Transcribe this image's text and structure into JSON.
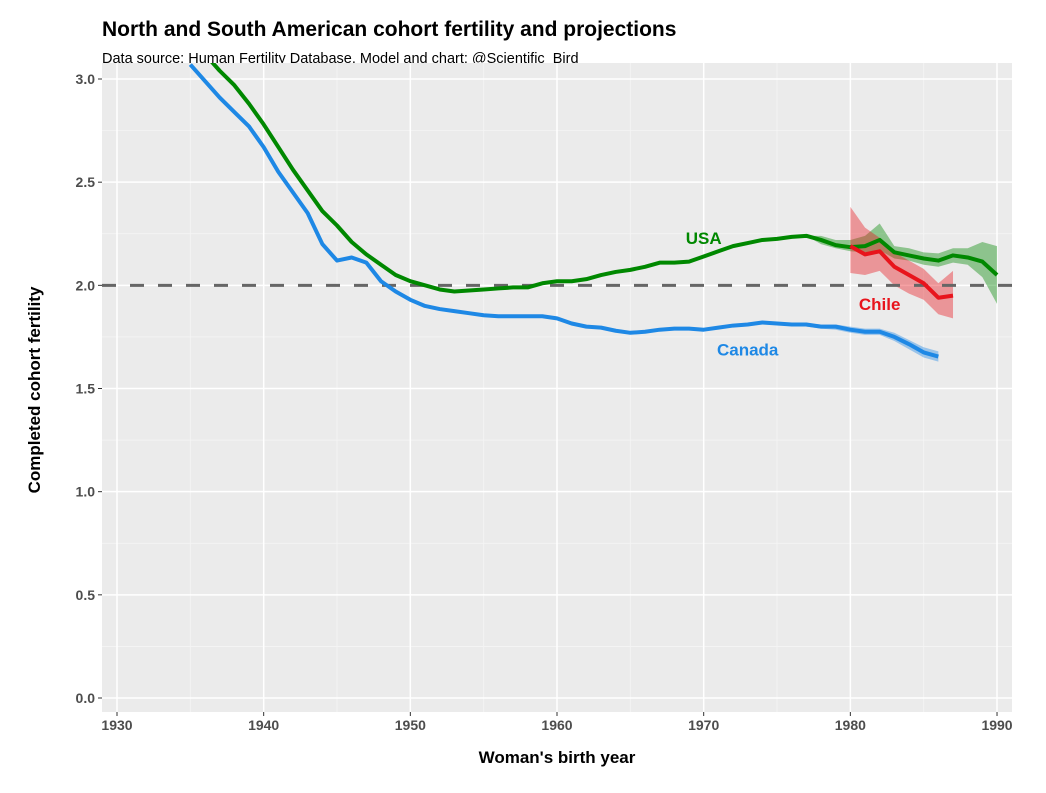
{
  "chart_data": {
    "type": "line",
    "title": "North and South American cohort fertility and projections",
    "subtitle": "Data source: Human Fertility Database.  Model and chart: @Scientific_Bird",
    "xlabel": "Woman's birth year",
    "ylabel": "Completed cohort fertility",
    "xlim": [
      1929.2,
      1990.9
    ],
    "ylim": [
      0,
      3.0
    ],
    "xticks": [
      1930,
      1940,
      1950,
      1960,
      1970,
      1980,
      1990
    ],
    "yticks": [
      0.0,
      0.5,
      1.0,
      1.5,
      2.0,
      2.5,
      3.0
    ],
    "ytick_labels": [
      "0.0",
      "0.5",
      "1.0",
      "1.5",
      "2.0",
      "2.5",
      "3.0"
    ],
    "grid": true,
    "reference_line": {
      "y": 2.0,
      "style": "dashed",
      "color": "#666666"
    },
    "series": [
      {
        "name": "USA",
        "color": "#008800",
        "label_pos": [
          1970,
          2.23
        ],
        "x": [
          1936,
          1937,
          1938,
          1939,
          1940,
          1941,
          1942,
          1943,
          1944,
          1945,
          1946,
          1947,
          1948,
          1949,
          1950,
          1951,
          1952,
          1953,
          1954,
          1955,
          1956,
          1957,
          1958,
          1959,
          1960,
          1961,
          1962,
          1963,
          1964,
          1965,
          1966,
          1967,
          1968,
          1969,
          1970,
          1971,
          1972,
          1973,
          1974,
          1975,
          1976,
          1977,
          1978,
          1979,
          1980,
          1981,
          1982,
          1983,
          1984,
          1985,
          1986,
          1987,
          1988,
          1989,
          1990
        ],
        "y": [
          3.12,
          3.04,
          2.97,
          2.88,
          2.78,
          2.67,
          2.56,
          2.46,
          2.36,
          2.29,
          2.21,
          2.15,
          2.1,
          2.05,
          2.02,
          2.0,
          1.98,
          1.97,
          1.975,
          1.98,
          1.985,
          1.99,
          1.99,
          2.01,
          2.02,
          2.02,
          2.03,
          2.05,
          2.065,
          2.075,
          2.09,
          2.11,
          2.11,
          2.115,
          2.14,
          2.165,
          2.19,
          2.205,
          2.22,
          2.225,
          2.235,
          2.24,
          2.22,
          2.195,
          2.185,
          2.19,
          2.22,
          2.16,
          2.145,
          2.13,
          2.12,
          2.145,
          2.135,
          2.115,
          2.05
        ],
        "band": {
          "x": [
            1977,
            1978,
            1979,
            1980,
            1981,
            1982,
            1983,
            1984,
            1985,
            1986,
            1987,
            1988,
            1989,
            1990
          ],
          "lower": [
            2.24,
            2.2,
            2.18,
            2.165,
            2.16,
            2.17,
            2.13,
            2.12,
            2.1,
            2.09,
            2.11,
            2.1,
            2.04,
            1.91
          ],
          "upper": [
            2.24,
            2.24,
            2.22,
            2.22,
            2.24,
            2.3,
            2.19,
            2.18,
            2.16,
            2.155,
            2.18,
            2.18,
            2.21,
            2.19
          ]
        }
      },
      {
        "name": "Chile",
        "color": "#e8141c",
        "label_pos": [
          1982,
          1.91
        ],
        "x": [
          1980,
          1981,
          1982,
          1983,
          1984,
          1985,
          1986,
          1987
        ],
        "y": [
          2.19,
          2.15,
          2.165,
          2.09,
          2.05,
          2.01,
          1.94,
          1.95
        ],
        "band": {
          "x": [
            1980,
            1981,
            1982,
            1983,
            1984,
            1985,
            1986,
            1987
          ],
          "lower": [
            2.06,
            2.05,
            2.07,
            2.0,
            1.96,
            1.93,
            1.86,
            1.84
          ],
          "upper": [
            2.38,
            2.28,
            2.23,
            2.16,
            2.12,
            2.08,
            2.01,
            2.07
          ]
        }
      },
      {
        "name": "Canada",
        "color": "#1e88e5",
        "label_pos": [
          1973,
          1.69
        ],
        "x": [
          1935,
          1936,
          1937,
          1938,
          1939,
          1940,
          1941,
          1942,
          1943,
          1944,
          1945,
          1946,
          1947,
          1948,
          1949,
          1950,
          1951,
          1952,
          1953,
          1954,
          1955,
          1956,
          1957,
          1958,
          1959,
          1960,
          1961,
          1962,
          1963,
          1964,
          1965,
          1966,
          1967,
          1968,
          1969,
          1970,
          1971,
          1972,
          1973,
          1974,
          1975,
          1976,
          1977,
          1978,
          1979,
          1980,
          1981,
          1982,
          1983,
          1984,
          1985,
          1986
        ],
        "y": [
          3.07,
          2.99,
          2.91,
          2.84,
          2.77,
          2.67,
          2.55,
          2.45,
          2.35,
          2.2,
          2.12,
          2.135,
          2.11,
          2.02,
          1.97,
          1.93,
          1.9,
          1.885,
          1.875,
          1.865,
          1.855,
          1.85,
          1.85,
          1.85,
          1.85,
          1.84,
          1.815,
          1.8,
          1.795,
          1.78,
          1.77,
          1.775,
          1.785,
          1.79,
          1.79,
          1.785,
          1.795,
          1.805,
          1.81,
          1.82,
          1.815,
          1.81,
          1.81,
          1.8,
          1.8,
          1.785,
          1.775,
          1.775,
          1.75,
          1.715,
          1.675,
          1.655
        ],
        "band": {
          "x": [
            1977,
            1978,
            1979,
            1980,
            1981,
            1982,
            1983,
            1984,
            1985,
            1986
          ],
          "lower": [
            1.8,
            1.79,
            1.785,
            1.77,
            1.76,
            1.76,
            1.73,
            1.69,
            1.65,
            1.63
          ],
          "upper": [
            1.815,
            1.81,
            1.81,
            1.8,
            1.79,
            1.79,
            1.77,
            1.735,
            1.7,
            1.68
          ]
        }
      }
    ]
  }
}
